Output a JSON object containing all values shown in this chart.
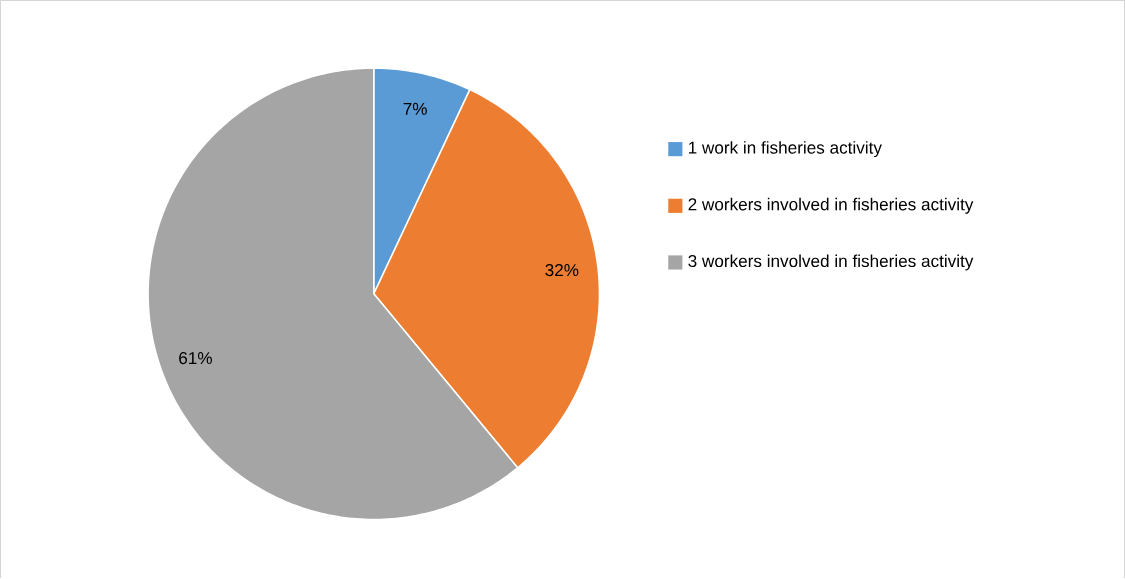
{
  "chart_data": {
    "type": "pie",
    "categories": [
      "1 work in fisheries activity",
      "2 workers involved in fisheries activity",
      "3 workers involved in fisheries activity"
    ],
    "values": [
      7,
      32,
      61
    ],
    "colors": [
      "#5b9bd5",
      "#ed7d31",
      "#a5a5a5"
    ],
    "value_labels": [
      "7%",
      "32%",
      "61%"
    ],
    "legend": "right"
  }
}
